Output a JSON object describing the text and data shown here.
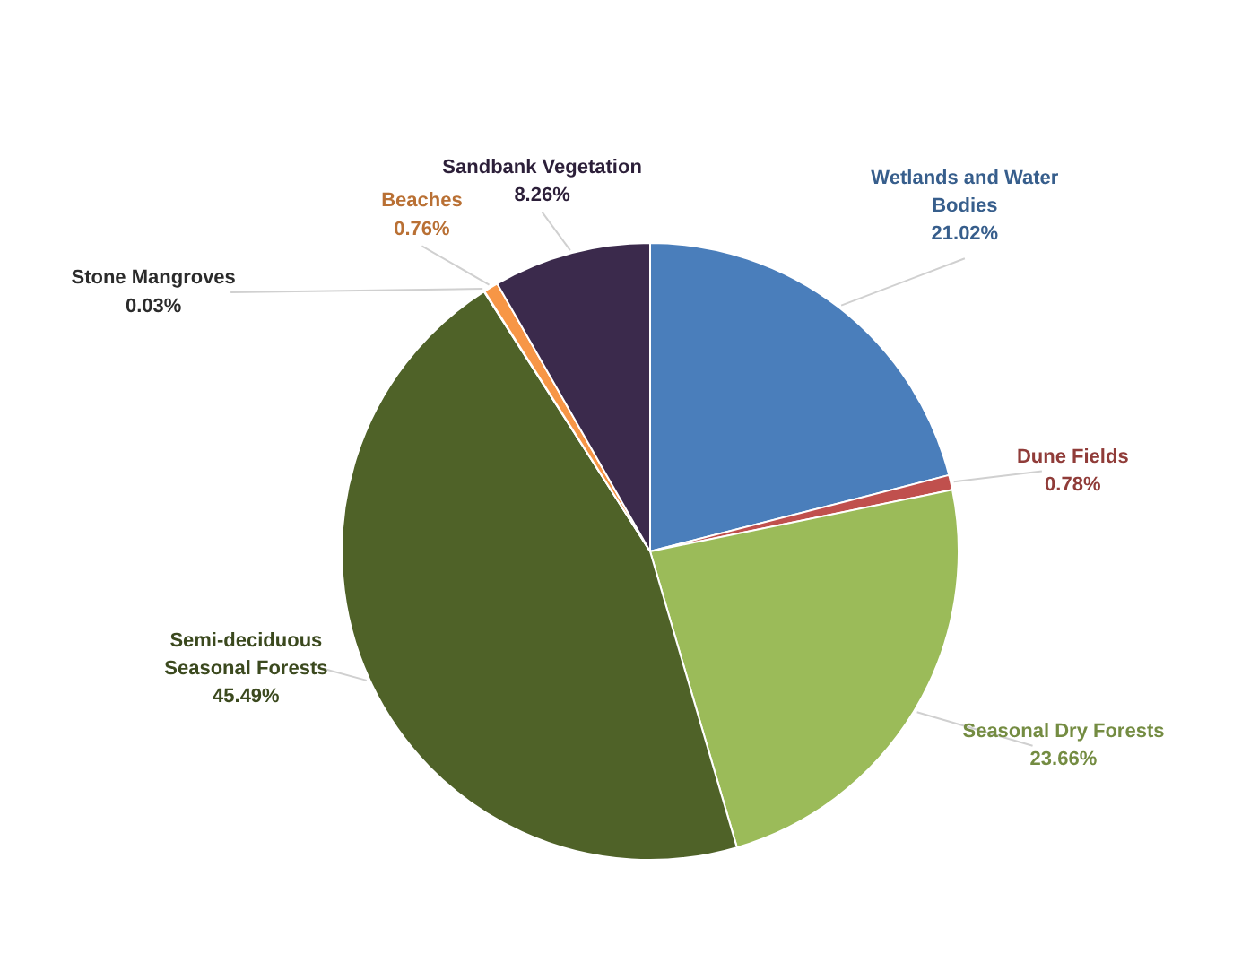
{
  "chart_data": {
    "type": "pie",
    "categories": [
      "Wetlands and Water Bodies",
      "Dune Fields",
      "Seasonal Dry Forests",
      "Semi-deciduous Seasonal Forests",
      "Stone Mangroves",
      "Beaches",
      "Sandbank Vegetation"
    ],
    "values": [
      21.02,
      0.78,
      23.66,
      45.49,
      0.03,
      0.76,
      8.26
    ],
    "colors": [
      "#4a7ebb",
      "#c0504d",
      "#9bbb59",
      "#4f6228",
      "#3a3a3a",
      "#f79646",
      "#3b2a4c"
    ],
    "value_labels": [
      "21.02%",
      "0.78%",
      "23.66%",
      "45.49%",
      "0.03%",
      "0.76%",
      "8.26%"
    ]
  }
}
